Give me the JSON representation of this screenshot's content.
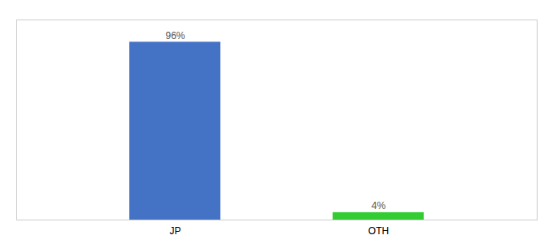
{
  "chart_data": {
    "type": "bar",
    "categories": [
      "JP",
      "OTH"
    ],
    "values": [
      96,
      4
    ],
    "value_labels": [
      "96%",
      "4%"
    ],
    "colors": [
      "#4472c4",
      "#33cc33"
    ],
    "ylim": [
      0,
      108
    ],
    "data_labels": true,
    "tick_labels": "x"
  }
}
